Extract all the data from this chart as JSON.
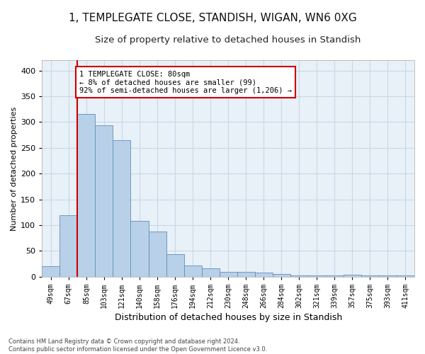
{
  "title": "1, TEMPLEGATE CLOSE, STANDISH, WIGAN, WN6 0XG",
  "subtitle": "Size of property relative to detached houses in Standish",
  "xlabel": "Distribution of detached houses by size in Standish",
  "ylabel": "Number of detached properties",
  "categories": [
    "49sqm",
    "67sqm",
    "85sqm",
    "103sqm",
    "121sqm",
    "140sqm",
    "158sqm",
    "176sqm",
    "194sqm",
    "212sqm",
    "230sqm",
    "248sqm",
    "266sqm",
    "284sqm",
    "302sqm",
    "321sqm",
    "339sqm",
    "357sqm",
    "375sqm",
    "393sqm",
    "411sqm"
  ],
  "values": [
    20,
    119,
    315,
    293,
    265,
    108,
    87,
    44,
    21,
    16,
    9,
    9,
    8,
    5,
    2,
    3,
    2,
    4,
    3,
    2,
    3
  ],
  "bar_color": "#b8d0e8",
  "bar_edge_color": "#6090b8",
  "grid_color": "#c8d8e8",
  "background_color": "#e8f0f8",
  "vline_x": 1.5,
  "vline_color": "#cc0000",
  "annotation_text": "1 TEMPLEGATE CLOSE: 80sqm\n← 8% of detached houses are smaller (99)\n92% of semi-detached houses are larger (1,206) →",
  "annotation_box_color": "#ffffff",
  "annotation_box_edge": "#cc0000",
  "ylim": [
    0,
    420
  ],
  "yticks": [
    0,
    50,
    100,
    150,
    200,
    250,
    300,
    350,
    400
  ],
  "footer": "Contains HM Land Registry data © Crown copyright and database right 2024.\nContains public sector information licensed under the Open Government Licence v3.0.",
  "title_fontsize": 11,
  "subtitle_fontsize": 9.5,
  "ylabel_fontsize": 8,
  "xlabel_fontsize": 9
}
